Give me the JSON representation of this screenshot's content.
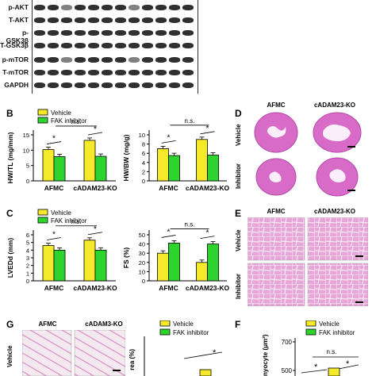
{
  "blot": {
    "rows": [
      "p-AKT",
      "T-AKT",
      "p-GSK3β",
      "T-GSK3β",
      "p-mTOR",
      "T-mTOR",
      "GAPDH"
    ]
  },
  "panels": {
    "B": "B",
    "C": "C",
    "D": "D",
    "E": "E",
    "F": "F",
    "G": "G"
  },
  "legend": {
    "vehicle": "Vehicle",
    "inhibitor": "FAK inhibitor"
  },
  "colors": {
    "vehicle": "#f5ea2a",
    "inhibitor": "#2ed42e"
  },
  "groups": [
    "AFMC",
    "cADAM23-KO"
  ],
  "marks": {
    "sig": "*",
    "ns": "n.s."
  },
  "panelD": {
    "col1": "AFMC",
    "col2": "cADAM23-KO",
    "row1": "Vehicle",
    "row2": "Inhibitor"
  },
  "panelE": {
    "col1": "AFMC",
    "col2": "cADAM23-KO",
    "row1": "Vehicle",
    "row2": "Inhibitor"
  },
  "panelG": {
    "col1": "AFMC",
    "col2": "cADAM3-KO",
    "row1": "Vehicle",
    "ylabel": "rea (%)"
  },
  "panelF": {
    "ylabel": "nyocyte (μm²)",
    "ytick_top": "700",
    "ytick_mid": "500"
  },
  "chart_data": [
    {
      "type": "bar",
      "id": "HW/TL",
      "categories": [
        "AFMC",
        "cADAM23-KO"
      ],
      "series": [
        {
          "name": "Vehicle",
          "values": [
            10.2,
            13.2
          ]
        },
        {
          "name": "FAK inhibitor",
          "values": [
            7.9,
            8.0
          ]
        }
      ],
      "ylabel": "HW/TL (mg/mm)",
      "ylim": [
        0,
        15
      ],
      "yticks": [
        "0",
        "5",
        "10",
        "15"
      ]
    },
    {
      "type": "bar",
      "id": "HW/BW",
      "categories": [
        "AFMC",
        "cADAM23-KO"
      ],
      "series": [
        {
          "name": "Vehicle",
          "values": [
            7.0,
            9.0
          ]
        },
        {
          "name": "FAK inhibitor",
          "values": [
            5.5,
            5.6
          ]
        }
      ],
      "ylabel": "HW/BW (mg/g)",
      "ylim": [
        0,
        10
      ],
      "yticks": [
        "0",
        "2",
        "4",
        "6",
        "8",
        "10"
      ]
    },
    {
      "type": "bar",
      "id": "LVEDd",
      "categories": [
        "AFMC",
        "cADAM23-KO"
      ],
      "series": [
        {
          "name": "Vehicle",
          "values": [
            4.6,
            5.3
          ]
        },
        {
          "name": "FAK inhibitor",
          "values": [
            4.0,
            4.0
          ]
        }
      ],
      "ylabel": "LVEDd (mm)",
      "ylim": [
        0,
        6
      ],
      "yticks": [
        "0",
        "1",
        "2",
        "3",
        "4",
        "5",
        "6"
      ]
    },
    {
      "type": "bar",
      "id": "FS",
      "categories": [
        "AFMC",
        "cADAM23-KO"
      ],
      "series": [
        {
          "name": "Vehicle",
          "values": [
            30,
            20
          ]
        },
        {
          "name": "FAK inhibitor",
          "values": [
            41,
            40
          ]
        }
      ],
      "ylabel": "FS (%)",
      "ylim": [
        0,
        50
      ],
      "yticks": [
        "0",
        "10",
        "20",
        "30",
        "40",
        "50"
      ]
    }
  ]
}
